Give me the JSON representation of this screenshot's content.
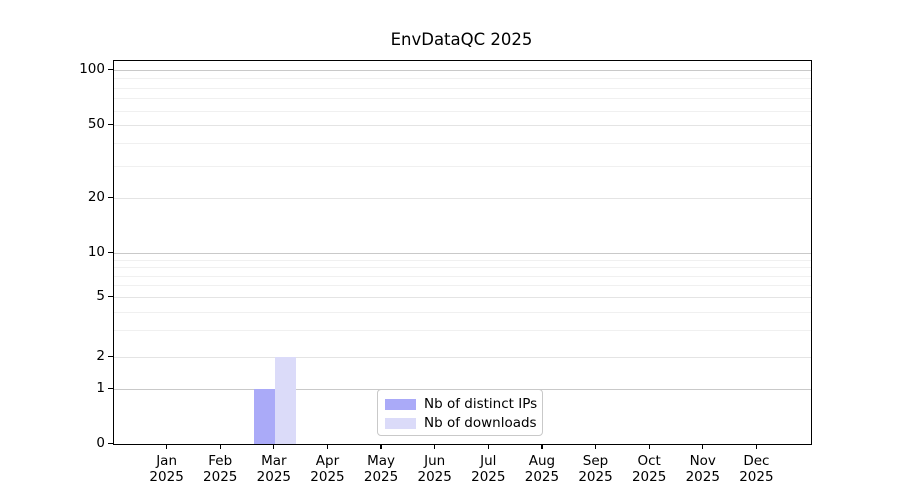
{
  "chart_data": {
    "type": "bar",
    "title": "EnvDataQC 2025",
    "categories": [
      {
        "month": "Jan",
        "year": "2025"
      },
      {
        "month": "Feb",
        "year": "2025"
      },
      {
        "month": "Mar",
        "year": "2025"
      },
      {
        "month": "Apr",
        "year": "2025"
      },
      {
        "month": "May",
        "year": "2025"
      },
      {
        "month": "Jun",
        "year": "2025"
      },
      {
        "month": "Jul",
        "year": "2025"
      },
      {
        "month": "Aug",
        "year": "2025"
      },
      {
        "month": "Sep",
        "year": "2025"
      },
      {
        "month": "Oct",
        "year": "2025"
      },
      {
        "month": "Nov",
        "year": "2025"
      },
      {
        "month": "Dec",
        "year": "2025"
      }
    ],
    "series": [
      {
        "name": "Nb of distinct IPs",
        "color": "#aaaaf8",
        "values": [
          0,
          0,
          1,
          0,
          0,
          0,
          0,
          0,
          0,
          0,
          0,
          0
        ]
      },
      {
        "name": "Nb of downloads",
        "color": "#dbdbf9",
        "values": [
          0,
          0,
          2,
          0,
          0,
          0,
          0,
          0,
          0,
          0,
          0,
          0
        ]
      }
    ],
    "y_axis": {
      "scale": "symlog",
      "tick_labels": [
        "0",
        "1",
        "2",
        "5",
        "10",
        "20",
        "50",
        "100"
      ],
      "tick_values": [
        0,
        1,
        2,
        5,
        10,
        20,
        50,
        100
      ],
      "minor_tick_values": [
        3,
        4,
        6,
        7,
        8,
        9,
        30,
        40,
        60,
        70,
        80,
        90
      ],
      "decade_values": [
        1,
        10,
        100
      ],
      "ylim": [
        0,
        112
      ],
      "grid": true
    },
    "legend": {
      "position": "bottom-center",
      "entries": [
        "Nb of distinct IPs",
        "Nb of downloads"
      ]
    },
    "colors": {
      "bar_distinct_ips": "#aaaaf8",
      "bar_downloads": "#dbdbf9",
      "grid_major": "#c9c9c9",
      "grid_minor": "#f0f0f0",
      "spine": "#000000",
      "background": "#ffffff"
    }
  }
}
